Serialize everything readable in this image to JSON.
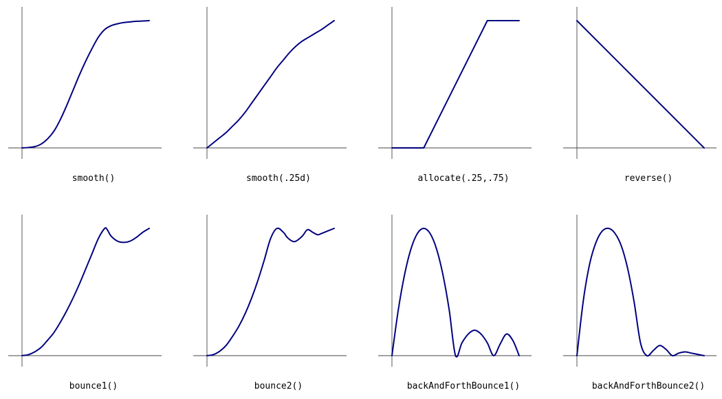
{
  "chart_data": [
    {
      "type": "line",
      "title": "smooth()",
      "xlim": [
        0,
        1
      ],
      "ylim": [
        0,
        1
      ],
      "color": "#00007f",
      "series": [
        {
          "x": [
            0,
            0.05,
            0.1,
            0.15,
            0.2,
            0.25,
            0.3,
            0.35,
            0.4,
            0.45,
            0.5,
            0.55,
            0.6,
            0.65,
            0.7,
            0.75,
            0.8,
            0.85,
            0.9,
            0.95,
            1
          ],
          "y": [
            0,
            0.003,
            0.01,
            0.03,
            0.07,
            0.13,
            0.22,
            0.33,
            0.45,
            0.57,
            0.68,
            0.78,
            0.87,
            0.93,
            0.96,
            0.975,
            0.985,
            0.99,
            0.995,
            0.997,
            1.0
          ]
        }
      ]
    },
    {
      "type": "line",
      "title": "smooth(.25d)",
      "xlim": [
        0,
        1
      ],
      "ylim": [
        0,
        1
      ],
      "color": "#00007f",
      "series": [
        {
          "x": [
            0,
            0.05,
            0.1,
            0.15,
            0.2,
            0.25,
            0.3,
            0.35,
            0.4,
            0.45,
            0.5,
            0.55,
            0.6,
            0.65,
            0.7,
            0.75,
            0.8,
            0.85,
            0.9,
            0.95,
            1
          ],
          "y": [
            0,
            0.04,
            0.08,
            0.12,
            0.17,
            0.22,
            0.28,
            0.35,
            0.42,
            0.49,
            0.56,
            0.63,
            0.69,
            0.75,
            0.8,
            0.84,
            0.87,
            0.9,
            0.93,
            0.965,
            1.0
          ]
        }
      ]
    },
    {
      "type": "line",
      "title": "allocate(.25,.75)",
      "xlim": [
        0,
        1
      ],
      "ylim": [
        0,
        1
      ],
      "color": "#00007f",
      "series": [
        {
          "x": [
            0,
            0.25,
            0.75,
            1
          ],
          "y": [
            0,
            0,
            1,
            1
          ]
        }
      ]
    },
    {
      "type": "line",
      "title": "reverse()",
      "xlim": [
        0,
        1
      ],
      "ylim": [
        0,
        1
      ],
      "color": "#00007f",
      "series": [
        {
          "x": [
            0,
            1
          ],
          "y": [
            1,
            0
          ]
        }
      ]
    },
    {
      "type": "line",
      "title": "bounce1()",
      "xlim": [
        0,
        1
      ],
      "ylim": [
        0,
        1
      ],
      "color": "#00007f",
      "series": [
        {
          "x": [
            0,
            0.05,
            0.1,
            0.15,
            0.2,
            0.25,
            0.3,
            0.35,
            0.4,
            0.45,
            0.5,
            0.55,
            0.6,
            0.65,
            0.67,
            0.7,
            0.75,
            0.8,
            0.85,
            0.9,
            0.95,
            1
          ],
          "y": [
            0,
            0.008,
            0.03,
            0.065,
            0.12,
            0.18,
            0.26,
            0.35,
            0.45,
            0.56,
            0.68,
            0.8,
            0.92,
            1.0,
            0.99,
            0.94,
            0.9,
            0.89,
            0.9,
            0.93,
            0.97,
            1.0
          ]
        }
      ]
    },
    {
      "type": "line",
      "title": "bounce2()",
      "xlim": [
        0,
        1
      ],
      "ylim": [
        0,
        1
      ],
      "color": "#00007f",
      "series": [
        {
          "x": [
            0,
            0.05,
            0.1,
            0.15,
            0.2,
            0.25,
            0.3,
            0.35,
            0.4,
            0.45,
            0.5,
            0.55,
            0.6,
            0.63,
            0.67,
            0.7,
            0.75,
            0.79,
            0.83,
            0.87,
            0.9,
            0.95,
            1
          ],
          "y": [
            0,
            0.008,
            0.035,
            0.08,
            0.15,
            0.23,
            0.33,
            0.45,
            0.59,
            0.75,
            0.92,
            1.0,
            0.97,
            0.93,
            0.9,
            0.9,
            0.94,
            0.99,
            0.97,
            0.95,
            0.96,
            0.98,
            1.0
          ]
        }
      ]
    },
    {
      "type": "line",
      "title": "backAndForthBounce1()",
      "xlim": [
        0,
        1
      ],
      "ylim": [
        0,
        1
      ],
      "color": "#00007f",
      "series": [
        {
          "x": [
            0,
            0.05,
            0.1,
            0.15,
            0.2,
            0.25,
            0.3,
            0.35,
            0.4,
            0.45,
            0.5,
            0.55,
            0.6,
            0.65,
            0.7,
            0.75,
            0.8,
            0.85,
            0.9,
            0.95,
            1
          ],
          "y": [
            0,
            0.36,
            0.64,
            0.84,
            0.96,
            1.0,
            0.96,
            0.84,
            0.64,
            0.36,
            0,
            0.1,
            0.17,
            0.2,
            0.17,
            0.1,
            0,
            0.09,
            0.17,
            0.12,
            0
          ]
        }
      ]
    },
    {
      "type": "line",
      "title": "backAndForthBounce2()",
      "xlim": [
        0,
        1
      ],
      "ylim": [
        0,
        1
      ],
      "color": "#00007f",
      "series": [
        {
          "x": [
            0,
            0.05,
            0.1,
            0.15,
            0.2,
            0.25,
            0.3,
            0.35,
            0.4,
            0.45,
            0.5,
            0.55,
            0.6,
            0.65,
            0.7,
            0.75,
            0.8,
            0.85,
            0.9,
            0.95,
            1
          ],
          "y": [
            0,
            0.43,
            0.72,
            0.89,
            0.98,
            1.0,
            0.96,
            0.86,
            0.68,
            0.42,
            0.1,
            0.0,
            0.04,
            0.08,
            0.05,
            0.0,
            0.02,
            0.03,
            0.02,
            0.01,
            0
          ]
        }
      ]
    }
  ]
}
